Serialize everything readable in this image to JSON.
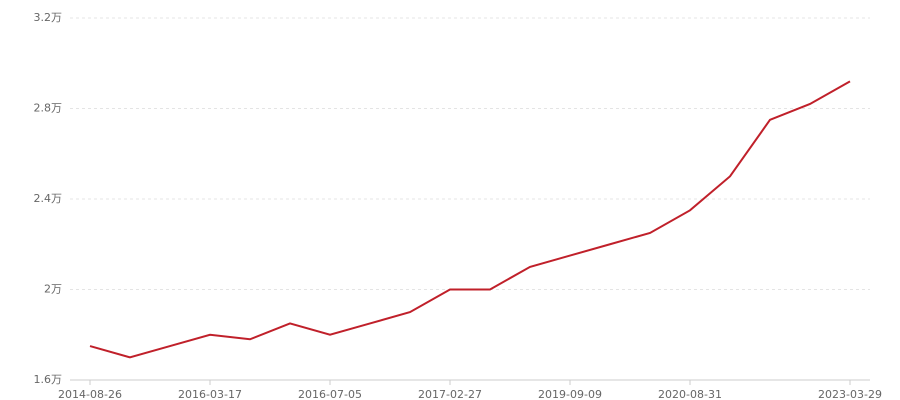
{
  "chart_data": {
    "type": "line",
    "categories": [
      "2014-08-26",
      null,
      null,
      "2016-03-17",
      null,
      null,
      "2016-07-05",
      null,
      null,
      "2017-02-27",
      null,
      null,
      "2019-09-09",
      null,
      null,
      "2020-08-31",
      null,
      null,
      null,
      "2023-03-29"
    ],
    "series": [
      {
        "color": "#c0202a",
        "values": [
          1.75,
          1.7,
          1.75,
          1.8,
          1.78,
          1.85,
          1.8,
          1.85,
          1.9,
          2.0,
          2.0,
          2.1,
          2.15,
          2.2,
          2.25,
          2.35,
          2.5,
          2.75,
          2.82,
          2.92
        ]
      }
    ],
    "ylim": [
      1.6,
      3.2
    ],
    "yticks": [
      {
        "value": 1.6,
        "label": "1.6万"
      },
      {
        "value": 2,
        "label": "2万"
      },
      {
        "value": 2.4,
        "label": "2.4万"
      },
      {
        "value": 2.8,
        "label": "2.8万"
      },
      {
        "value": 3.2,
        "label": "3.2万"
      }
    ],
    "grid": true
  }
}
